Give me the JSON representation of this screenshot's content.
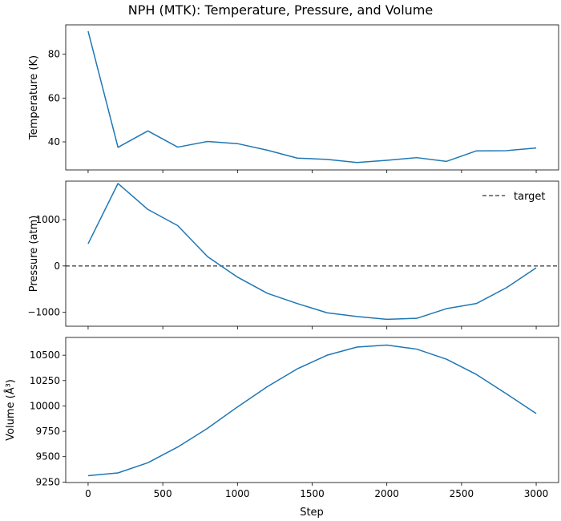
{
  "chart_data": {
    "type": "line",
    "title": "NPH (MTK): Temperature, Pressure, and Volume",
    "x": [
      0,
      200,
      400,
      600,
      800,
      1000,
      1200,
      1400,
      1600,
      1800,
      2000,
      2200,
      2400,
      2600,
      2800,
      3000
    ],
    "xlabel": "Step",
    "xlim": [
      -150,
      3150
    ],
    "xticks": [
      0,
      500,
      1000,
      1500,
      2000,
      2500,
      3000
    ],
    "line_color": "#1f77b4",
    "panels": [
      {
        "ylabel": "Temperature (K)",
        "ylim": [
          27.2,
          93.4
        ],
        "yticks": [
          40,
          60,
          80
        ],
        "series": [
          {
            "values": [
              90.5,
              37.5,
              45,
              37.6,
              40.2,
              39.2,
              36.2,
              32.6,
              32,
              30.6,
              31.6,
              32.8,
              31.1,
              35.9,
              36,
              37.2
            ]
          }
        ]
      },
      {
        "ylabel": "Pressure (atm)",
        "ylim": [
          -1300,
          1830
        ],
        "yticks": [
          -1000,
          0,
          1000
        ],
        "series": [
          {
            "values": [
              480,
              1780,
              1220,
              870,
              200,
              -240,
              -590,
              -810,
              -1010,
              -1090,
              -1150,
              -1130,
              -920,
              -810,
              -470,
              -40
            ]
          }
        ],
        "reference_line": {
          "value": 0,
          "label": "target",
          "style": "dashed",
          "color": "#000000"
        },
        "legend": {
          "position": "top-right",
          "entries": [
            "target"
          ]
        }
      },
      {
        "ylabel": "Volume (Å³)",
        "ylim": [
          9245,
          10675
        ],
        "yticks": [
          9250,
          9500,
          9750,
          10000,
          10250,
          10500
        ],
        "series": [
          {
            "values": [
              9312,
              9340,
              9440,
              9595,
              9780,
              9990,
              10190,
              10365,
              10500,
              10580,
              10600,
              10560,
              10460,
              10310,
              10120,
              9925
            ]
          }
        ]
      }
    ]
  }
}
